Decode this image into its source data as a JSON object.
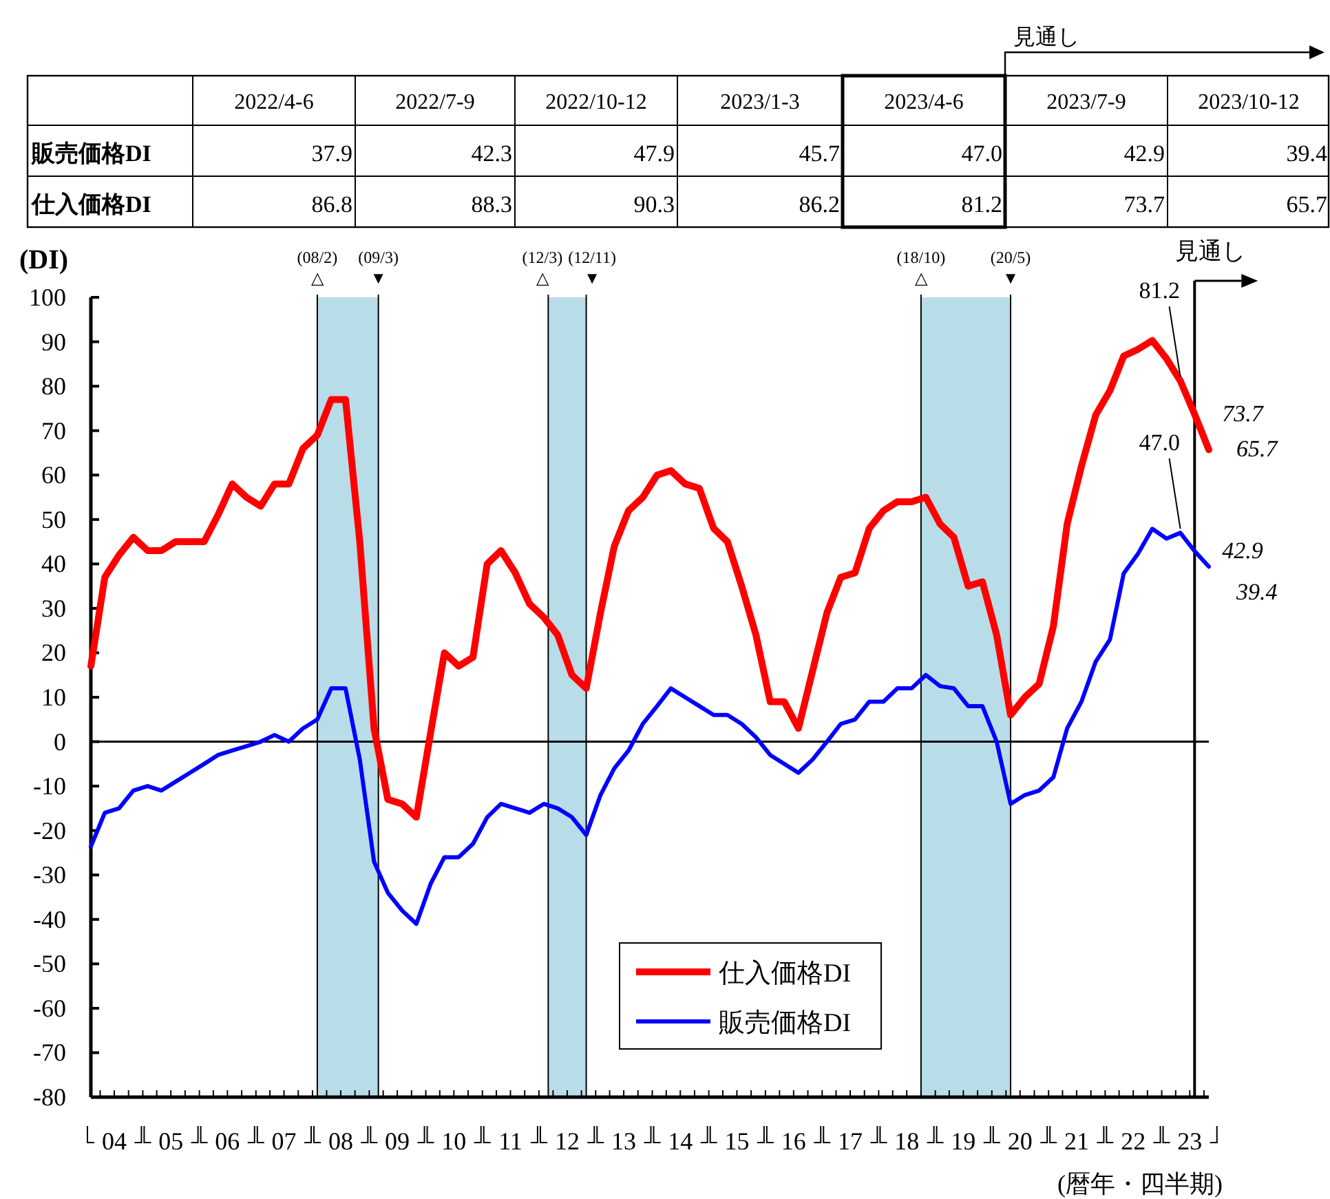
{
  "chart_data": [
    {
      "type": "other",
      "categories": [
        "2022/4-6",
        "2022/7-9",
        "2022/10-12",
        "2023/1-3",
        "2023/4-6",
        "2023/7-9",
        "2023/10-12"
      ],
      "series": [
        {
          "name": "販売価格DI",
          "values": [
            37.9,
            42.3,
            47.9,
            45.7,
            47.0,
            42.9,
            39.4
          ],
          "value_labels": [
            "37.9",
            "42.3",
            "47.9",
            "45.7",
            "47.0",
            "42.9",
            "39.4"
          ]
        },
        {
          "name": "仕入価格DI",
          "values": [
            86.8,
            88.3,
            90.3,
            86.2,
            81.2,
            73.7,
            65.7
          ],
          "value_labels": [
            "86.8",
            "88.3",
            "90.3",
            "86.2",
            "81.2",
            "73.7",
            "65.7"
          ]
        }
      ],
      "annotations": [
        {
          "text": "見通し",
          "x": "2023/7-9"
        }
      ]
    },
    {
      "type": "line",
      "ylabel": "(DI)",
      "xlabel": "(暦年・四半期)",
      "x": [
        "2004-02",
        "2004-05",
        "2004-08",
        "2004-11",
        "2005-02",
        "2005-05",
        "2005-08",
        "2005-11",
        "2006-02",
        "2006-05",
        "2006-08",
        "2006-11",
        "2007-02",
        "2007-05",
        "2007-08",
        "2007-11",
        "2008-02",
        "2008-05",
        "2008-08",
        "2008-11",
        "2009-02",
        "2009-05",
        "2009-08",
        "2009-11",
        "2010-02",
        "2010-05",
        "2010-08",
        "2010-11",
        "2011-02",
        "2011-05",
        "2011-08",
        "2011-11",
        "2012-02",
        "2012-05",
        "2012-08",
        "2012-11",
        "2013-02",
        "2013-05",
        "2013-08",
        "2013-11",
        "2014-02",
        "2014-05",
        "2014-08",
        "2014-11",
        "2015-02",
        "2015-05",
        "2015-08",
        "2015-11",
        "2016-02",
        "2016-05",
        "2016-08",
        "2016-11",
        "2017-02",
        "2017-05",
        "2017-08",
        "2017-11",
        "2018-02",
        "2018-05",
        "2018-08",
        "2018-11",
        "2019-02",
        "2019-05",
        "2019-08",
        "2019-11",
        "2020-02",
        "2020-05",
        "2020-08",
        "2020-11",
        "2021-02",
        "2021-05",
        "2021-08",
        "2021-11",
        "2022-02",
        "2022-05",
        "2022-08",
        "2022-11",
        "2023-02",
        "2023-05",
        "2023-08",
        "2023-11"
      ],
      "series": [
        {
          "name": "仕入価格DI",
          "color": "#ff0000",
          "values": [
            17,
            37,
            42,
            46,
            43,
            43,
            45,
            45,
            45,
            51,
            58,
            55,
            53,
            58,
            58,
            66,
            69,
            77,
            77,
            45,
            3,
            -13,
            -14,
            -17,
            2,
            20,
            17,
            19,
            40,
            43,
            38,
            31,
            28,
            24,
            15,
            12,
            29,
            44,
            52,
            55,
            60,
            61,
            58,
            57,
            48,
            45,
            35,
            24,
            9,
            9,
            3,
            16,
            29,
            37,
            38,
            48,
            52,
            54,
            54,
            55,
            49,
            46,
            35,
            36,
            24,
            6,
            10,
            13,
            26,
            49,
            62,
            73.5,
            79,
            86.8,
            88.3,
            90.3,
            86.2,
            81.2,
            73.7,
            65.7
          ],
          "value_labels": [
            null,
            null,
            null,
            null,
            null,
            null,
            null,
            null,
            null,
            null,
            null,
            null,
            null,
            null,
            null,
            null,
            null,
            null,
            null,
            null,
            null,
            null,
            null,
            null,
            null,
            null,
            null,
            null,
            null,
            null,
            null,
            null,
            null,
            null,
            null,
            null,
            null,
            null,
            null,
            null,
            null,
            null,
            null,
            null,
            null,
            null,
            null,
            null,
            null,
            null,
            null,
            null,
            null,
            null,
            null,
            null,
            null,
            null,
            null,
            null,
            null,
            null,
            null,
            null,
            null,
            null,
            null,
            null,
            null,
            null,
            null,
            null,
            null,
            null,
            null,
            null,
            null,
            "81.2",
            "73.7",
            "65.7"
          ]
        },
        {
          "name": "販売価格DI",
          "color": "#0000ff",
          "values": [
            -23.6,
            -16,
            -15,
            -11,
            -10,
            -11,
            -9,
            -7,
            -5,
            -3,
            -2,
            -1,
            0,
            1.5,
            0,
            3,
            5,
            12,
            12,
            -4,
            -27,
            -34,
            -38,
            -41,
            -32,
            -26,
            -26,
            -23,
            -17,
            -14,
            -15,
            -16,
            -14,
            -15,
            -17,
            -21,
            -12,
            -6,
            -2,
            4,
            8,
            12,
            10,
            8,
            6,
            6,
            4,
            1,
            -3,
            -5,
            -7,
            -4,
            0,
            4,
            5,
            9,
            9,
            12,
            12,
            15,
            12.5,
            12,
            8,
            8,
            0,
            -14,
            -12,
            -11,
            -8,
            3,
            9,
            18,
            23,
            37.9,
            42.3,
            47.9,
            45.7,
            47.0,
            42.9,
            39.4
          ],
          "value_labels": [
            null,
            null,
            null,
            null,
            null,
            null,
            null,
            null,
            null,
            null,
            null,
            null,
            null,
            null,
            null,
            null,
            null,
            null,
            null,
            null,
            null,
            null,
            null,
            null,
            null,
            null,
            null,
            null,
            null,
            null,
            null,
            null,
            null,
            null,
            null,
            null,
            null,
            null,
            null,
            null,
            null,
            null,
            null,
            null,
            null,
            null,
            null,
            null,
            null,
            null,
            null,
            null,
            null,
            null,
            null,
            null,
            null,
            null,
            null,
            null,
            null,
            null,
            null,
            null,
            null,
            null,
            null,
            null,
            null,
            null,
            null,
            null,
            null,
            null,
            null,
            null,
            null,
            "47.0",
            "42.9",
            "39.4"
          ]
        }
      ],
      "xlim": [
        "2004-02",
        "2023-11"
      ],
      "xticks": [
        {
          "value": "2004-07",
          "label": "04"
        },
        {
          "value": "2005-07",
          "label": "05"
        },
        {
          "value": "2006-07",
          "label": "06"
        },
        {
          "value": "2007-07",
          "label": "07"
        },
        {
          "value": "2008-07",
          "label": "08"
        },
        {
          "value": "2009-07",
          "label": "09"
        },
        {
          "value": "2010-07",
          "label": "10"
        },
        {
          "value": "2011-07",
          "label": "11"
        },
        {
          "value": "2012-07",
          "label": "12"
        },
        {
          "value": "2013-07",
          "label": "13"
        },
        {
          "value": "2014-07",
          "label": "14"
        },
        {
          "value": "2015-07",
          "label": "15"
        },
        {
          "value": "2016-07",
          "label": "16"
        },
        {
          "value": "2017-07",
          "label": "17"
        },
        {
          "value": "2018-07",
          "label": "18"
        },
        {
          "value": "2019-07",
          "label": "19"
        },
        {
          "value": "2020-07",
          "label": "20"
        },
        {
          "value": "2021-07",
          "label": "21"
        },
        {
          "value": "2022-07",
          "label": "22"
        },
        {
          "value": "2023-07",
          "label": "23"
        }
      ],
      "ylim": [
        -80,
        100
      ],
      "yticks": [
        -80,
        -70,
        -60,
        -50,
        -40,
        -30,
        -20,
        -10,
        0,
        10,
        20,
        30,
        40,
        50,
        60,
        70,
        80,
        90,
        100
      ],
      "bands": [
        {
          "axis": "x",
          "from": "2008-02",
          "to": "2009-03",
          "color": "#b8dde8"
        },
        {
          "axis": "x",
          "from": "2012-03",
          "to": "2012-11",
          "color": "#b8dde8"
        },
        {
          "axis": "x",
          "from": "2018-10",
          "to": "2020-05",
          "color": "#b8dde8"
        }
      ],
      "ref_lines": [
        {
          "axis": "x",
          "value": "2008-02",
          "label": "(08/2)\n△"
        },
        {
          "axis": "x",
          "value": "2009-03",
          "label": "(09/3)\n▼"
        },
        {
          "axis": "x",
          "value": "2012-03",
          "label": "(12/3)\n△"
        },
        {
          "axis": "x",
          "value": "2012-11",
          "label": "(12/11)\n▼"
        },
        {
          "axis": "x",
          "value": "2018-10",
          "label": "(18/10)\n△"
        },
        {
          "axis": "x",
          "value": "2020-05",
          "label": "(20/5)\n▼"
        },
        {
          "axis": "x",
          "value": "2023-08",
          "label": "見通し"
        },
        {
          "axis": "y",
          "value": 0
        }
      ],
      "legend": "bottom"
    }
  ]
}
